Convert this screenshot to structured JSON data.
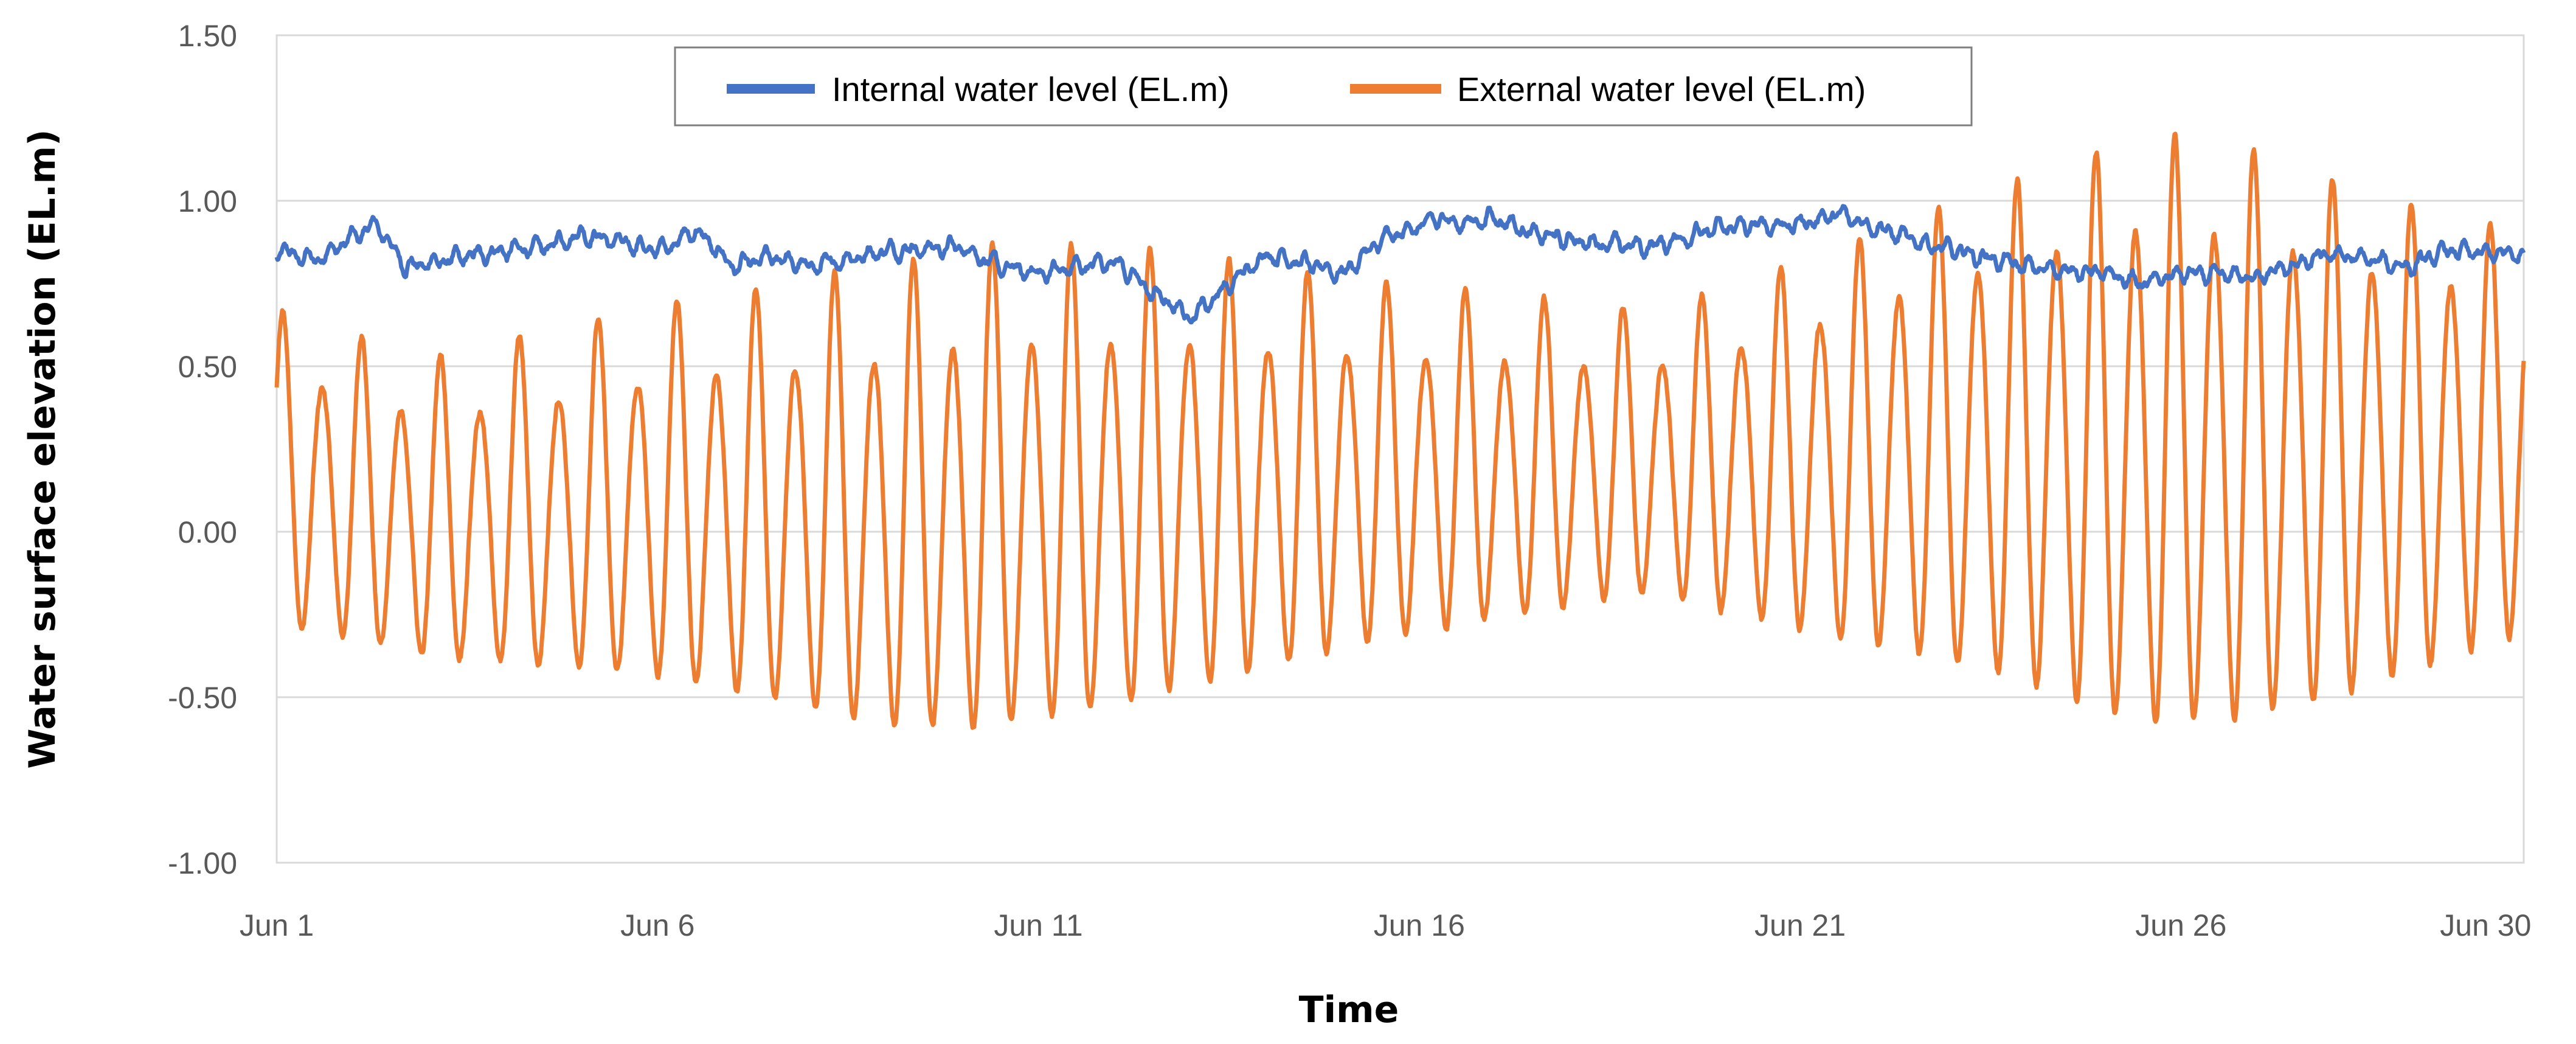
{
  "chart_data": {
    "type": "line",
    "title": "",
    "xlabel": "Time",
    "ylabel": "Water surface elevation (EL.m)",
    "ylim": [
      -1.0,
      1.5
    ],
    "y_ticks": [
      {
        "value": -1.0,
        "label": "-1.00"
      },
      {
        "value": -0.5,
        "label": "-0.50"
      },
      {
        "value": 0.0,
        "label": "0.00"
      },
      {
        "value": 0.5,
        "label": "0.50"
      },
      {
        "value": 1.0,
        "label": "1.00"
      },
      {
        "value": 1.5,
        "label": "1.50"
      }
    ],
    "xlim_days": [
      1,
      30.5
    ],
    "x_ticks": [
      {
        "day": 1,
        "label": "Jun 1"
      },
      {
        "day": 6,
        "label": "Jun 6"
      },
      {
        "day": 11,
        "label": "Jun 11"
      },
      {
        "day": 16,
        "label": "Jun 16"
      },
      {
        "day": 21,
        "label": "Jun 21"
      },
      {
        "day": 26,
        "label": "Jun 26"
      },
      {
        "day": 30,
        "label": "Jun 30"
      }
    ],
    "gridlines": "horizontal",
    "legend": {
      "position": "top-center",
      "border": true
    },
    "sampling": {
      "samples_per_day": 96,
      "start_day": 1,
      "end_day": 30.5
    },
    "series": [
      {
        "name": "Internal water level (EL.m)",
        "color": "#4472C4",
        "key_days": [
          1,
          1.5,
          2.3,
          2.7,
          4,
          4.5,
          5,
          6,
          6.5,
          7,
          7.5,
          8,
          9,
          10,
          10.5,
          11,
          11.5,
          12,
          12.5,
          13,
          14,
          15,
          15.5,
          16.3,
          16.5,
          17,
          17.5,
          18,
          19,
          20,
          21,
          21.5,
          22,
          22.5,
          23,
          24,
          25,
          25.5,
          26,
          27,
          28,
          29,
          29.5,
          30,
          30.5
        ],
        "key_values": [
          0.85,
          0.82,
          0.93,
          0.8,
          0.85,
          0.86,
          0.9,
          0.85,
          0.91,
          0.8,
          0.83,
          0.8,
          0.85,
          0.86,
          0.8,
          0.78,
          0.8,
          0.82,
          0.72,
          0.65,
          0.84,
          0.78,
          0.88,
          0.95,
          0.93,
          0.95,
          0.9,
          0.88,
          0.86,
          0.92,
          0.93,
          0.96,
          0.92,
          0.88,
          0.85,
          0.8,
          0.78,
          0.75,
          0.78,
          0.77,
          0.84,
          0.8,
          0.85,
          0.84,
          0.84
        ],
        "noise_amplitude": 0.025
      },
      {
        "name": "External water level (EL.m)",
        "color": "#ED7D31",
        "tide_period_days": 0.5175,
        "phase_day": 1.08,
        "mean_days": [
          1,
          3,
          6,
          9,
          11,
          13,
          16,
          19,
          21,
          23.5,
          26,
          28,
          30.5
        ],
        "mean_values": [
          0.15,
          0.03,
          0.07,
          0.04,
          0.08,
          0.12,
          0.17,
          0.2,
          0.21,
          0.25,
          0.24,
          0.22,
          0.25
        ],
        "amp_days": [
          1,
          3,
          6,
          9,
          10,
          12,
          15.5,
          19,
          21,
          24,
          25.5,
          27,
          30.5
        ],
        "amp_values": [
          0.42,
          0.4,
          0.5,
          0.62,
          0.65,
          0.62,
          0.48,
          0.38,
          0.5,
          0.7,
          0.82,
          0.78,
          0.55
        ],
        "modulation_days": [
          1,
          7,
          13,
          18,
          24,
          30.5
        ],
        "modulation_values": [
          0.24,
          0.24,
          0.24,
          0.24,
          0.18,
          0.18
        ],
        "noise_amplitude": 0.02
      }
    ]
  }
}
